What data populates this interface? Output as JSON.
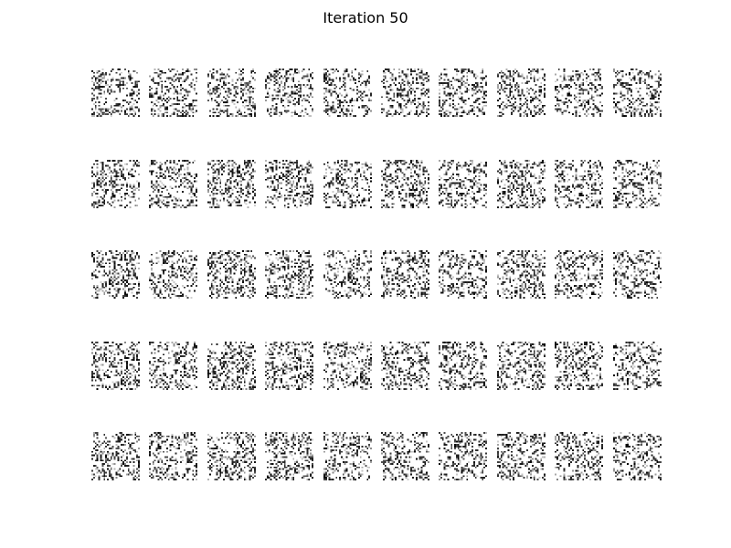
{
  "figure": {
    "title": "Iteration 50",
    "rows": 5,
    "cols": 10,
    "image_resolution": 28,
    "ink_color": "#000000",
    "paper_color": "#ffffff"
  }
}
